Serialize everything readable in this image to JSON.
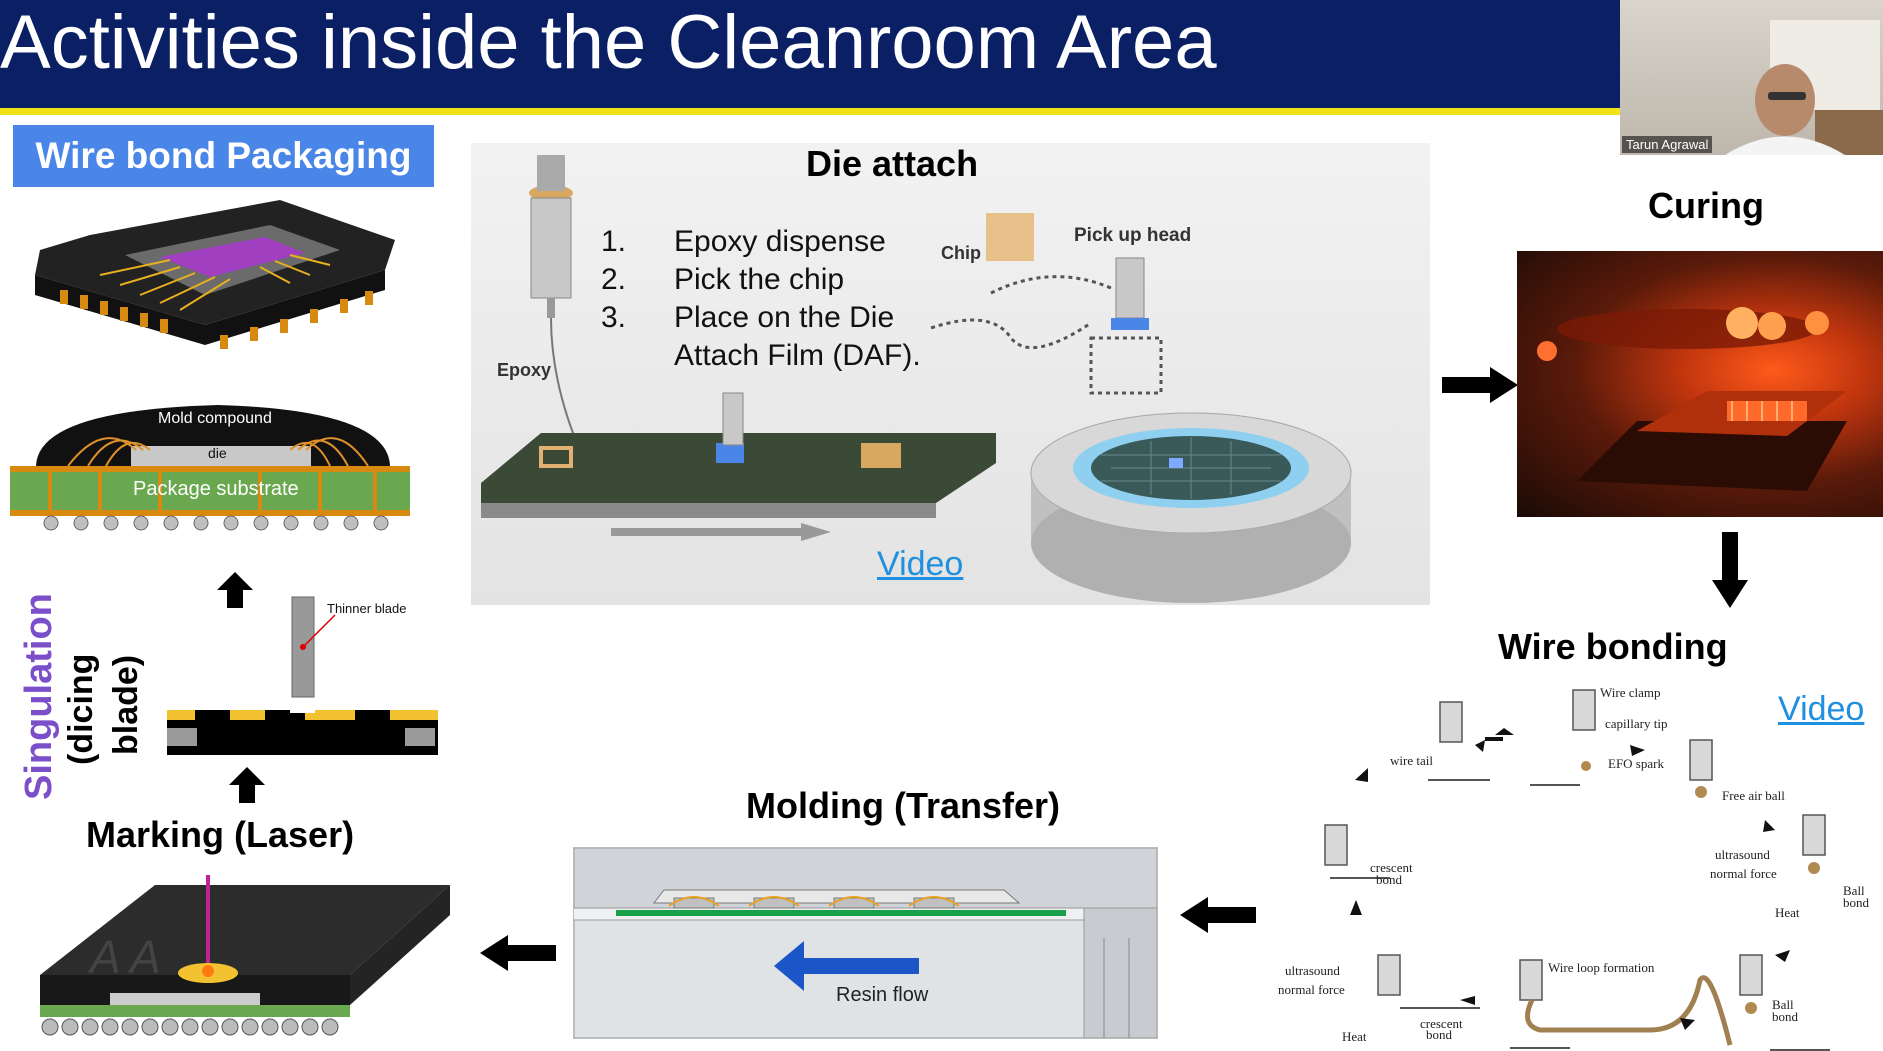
{
  "slide": {
    "title": "Activities inside the Cleanroom Area",
    "webcam": {
      "participant_name": "Tarun Agrawal"
    },
    "wire_bond_packaging": {
      "label": "Wire bond Packaging",
      "mold_compound_label": "Mold compound",
      "die_label": "die",
      "package_substrate_label": "Package substrate"
    },
    "die_attach": {
      "heading": "Die attach",
      "steps": [
        {
          "num": "1.",
          "text": "Epoxy dispense"
        },
        {
          "num": "2.",
          "text": "Pick the chip"
        },
        {
          "num": "3.",
          "text": "Place on the Die"
        },
        {
          "num": "",
          "text": "Attach Film (DAF)."
        }
      ],
      "chip_label": "Chip",
      "pickup_head_label": "Pick up head",
      "epoxy_label": "Epoxy",
      "video_link": "Video"
    },
    "curing": {
      "heading": "Curing"
    },
    "wire_bonding": {
      "heading": "Wire bonding",
      "video_link": "Video",
      "labels": {
        "wire_clamp": "Wire clamp",
        "capillary_tip": "capillary tip",
        "efo_spark": "EFO spark",
        "wire_tail": "wire tail",
        "free_air_ball": "Free air ball",
        "ultrasound_1": "ultrasound",
        "normal_force_1": "normal force",
        "ball_bond_1": "Ball",
        "ball_bond_1b": "bond",
        "heat_1": "Heat",
        "crescent_bond_1": "crescent",
        "crescent_bond_1b": "bond",
        "wire_loop_formation": "Wire loop formation",
        "ball_bond_2": "Ball",
        "ball_bond_2b": "bond",
        "ultrasound_2": "ultrasound",
        "normal_force_2": "normal force",
        "heat_2": "Heat",
        "crescent_bond_2": "crescent",
        "crescent_bond_2b": "bond"
      }
    },
    "molding": {
      "heading": "Molding (Transfer)",
      "resin_flow_label": "Resin flow"
    },
    "singulation": {
      "title": "Singulation",
      "sub1": "(dicing",
      "sub2": "blade)",
      "thinner_blade_label": "Thinner blade"
    },
    "marking": {
      "heading": "Marking (Laser)",
      "package_letters": "A A"
    },
    "colors": {
      "title_bar": "#0a1f64",
      "accent_line": "#f2e21a",
      "wire_bond_label_bg": "#4a86e8",
      "singulation_text": "#7b4fc9",
      "video_link": "#1f8fe0"
    }
  }
}
